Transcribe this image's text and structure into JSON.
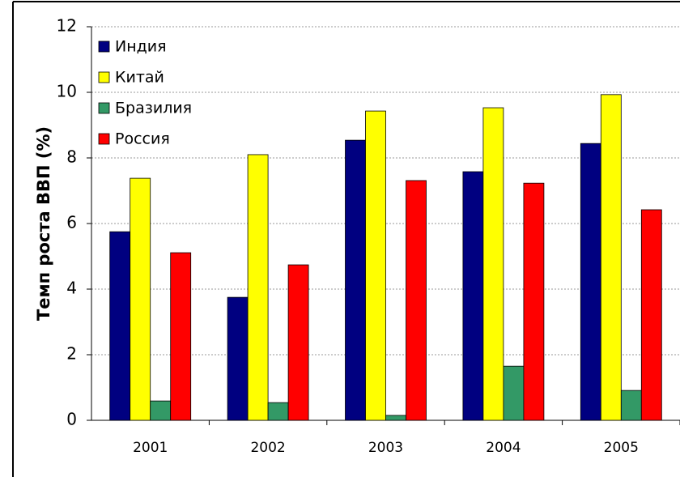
{
  "chart_data": {
    "type": "bar",
    "ylabel": "Темп роста ВВП (%)",
    "categories": [
      "2001",
      "2002",
      "2003",
      "2004",
      "2005"
    ],
    "series": [
      {
        "name": "Индия",
        "color": "#000080",
        "values": [
          5.75,
          3.75,
          8.54,
          7.58,
          8.44
        ]
      },
      {
        "name": "Китай",
        "color": "#ffff00",
        "values": [
          7.38,
          8.1,
          9.43,
          9.53,
          9.93
        ]
      },
      {
        "name": "Бразилия",
        "color": "#339966",
        "values": [
          0.59,
          0.54,
          0.15,
          1.65,
          0.91
        ]
      },
      {
        "name": "Россия",
        "color": "#ff0000",
        "values": [
          5.11,
          4.74,
          7.31,
          7.23,
          6.42
        ]
      }
    ],
    "ylim": [
      0,
      12
    ],
    "yticks": [
      0,
      2,
      4,
      6,
      8,
      10,
      12
    ],
    "grid": true,
    "legend": "upper left"
  }
}
